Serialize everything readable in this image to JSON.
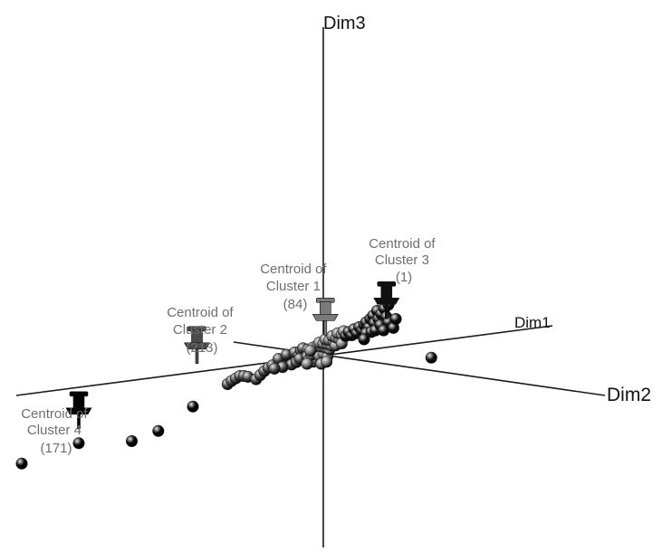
{
  "chart_data": {
    "type": "scatter",
    "projection": "3d",
    "title": "",
    "axes": [
      {
        "name": "Dim1",
        "label": "Dim1"
      },
      {
        "name": "Dim2",
        "label": "Dim2"
      },
      {
        "name": "Dim3",
        "label": "Dim3"
      }
    ],
    "clusters": [
      {
        "cluster": 1,
        "label_lines": [
          "Centroid of",
          "Cluster 1",
          "(84)"
        ],
        "size": 84,
        "color": "#7a7a7a"
      },
      {
        "cluster": 2,
        "label_lines": [
          "Centroid of",
          "Cluster 2",
          "(213)"
        ],
        "size": 213,
        "color": "#4a4a4a"
      },
      {
        "cluster": 3,
        "label_lines": [
          "Centroid of",
          "Cluster 3",
          "(1)"
        ],
        "size": 1,
        "color": "#111111"
      },
      {
        "cluster": 4,
        "label_lines": [
          "Centroid of",
          "Cluster 4",
          "(171)"
        ],
        "size": 171,
        "color": "#000000"
      }
    ],
    "points_note": "",
    "points": [
      {
        "cluster": 4,
        "u": -4.7,
        "v": -2.3
      },
      {
        "cluster": 4,
        "u": -4.05,
        "v": -2.05
      },
      {
        "cluster": 4,
        "u": -3.2,
        "v": -1.45
      },
      {
        "cluster": 2,
        "u": -2.35,
        "v": -0.9
      },
      {
        "cluster": 2,
        "u": -2.25,
        "v": -0.82
      },
      {
        "cluster": 2,
        "u": -2.15,
        "v": -0.76
      },
      {
        "cluster": 2,
        "u": -2.05,
        "v": -0.7
      },
      {
        "cluster": 2,
        "u": -1.95,
        "v": -0.7
      },
      {
        "cluster": 2,
        "u": -1.85,
        "v": -0.72
      },
      {
        "cluster": 2,
        "u": -1.65,
        "v": -0.78
      },
      {
        "cluster": 2,
        "u": -1.55,
        "v": -0.68
      },
      {
        "cluster": 2,
        "u": -1.45,
        "v": -0.58
      },
      {
        "cluster": 2,
        "u": -1.35,
        "v": -0.5
      },
      {
        "cluster": 2,
        "u": -1.25,
        "v": -0.44
      },
      {
        "cluster": 2,
        "u": -1.05,
        "v": -0.4
      },
      {
        "cluster": 2,
        "u": -0.95,
        "v": -0.35
      },
      {
        "cluster": 2,
        "u": -1.1,
        "v": -0.28
      },
      {
        "cluster": 2,
        "u": -0.85,
        "v": -0.24
      },
      {
        "cluster": 2,
        "u": -0.75,
        "v": -0.3
      },
      {
        "cluster": 2,
        "u": -0.9,
        "v": -0.18
      },
      {
        "cluster": 2,
        "u": -0.7,
        "v": -0.12
      },
      {
        "cluster": 2,
        "u": -0.6,
        "v": -0.2
      },
      {
        "cluster": 2,
        "u": -0.55,
        "v": -0.08
      },
      {
        "cluster": 2,
        "u": -0.45,
        "v": -0.14
      },
      {
        "cluster": 2,
        "u": -0.5,
        "v": -0.02
      },
      {
        "cluster": 2,
        "u": -0.38,
        "v": -0.05
      },
      {
        "cluster": 2,
        "u": -0.78,
        "v": -0.42
      },
      {
        "cluster": 2,
        "u": -0.66,
        "v": -0.36
      },
      {
        "cluster": 2,
        "u": -1.0,
        "v": -0.48
      },
      {
        "cluster": 2,
        "u": -1.2,
        "v": -0.52
      },
      {
        "cluster": 2,
        "u": -0.58,
        "v": -0.28
      },
      {
        "cluster": 2,
        "u": -0.4,
        "v": -0.22
      },
      {
        "cluster": 1,
        "u": -0.35,
        "v": -0.3
      },
      {
        "cluster": 1,
        "u": -0.25,
        "v": -0.35
      },
      {
        "cluster": 1,
        "u": -0.15,
        "v": -0.28
      },
      {
        "cluster": 1,
        "u": -0.05,
        "v": -0.32
      },
      {
        "cluster": 1,
        "u": -0.3,
        "v": -0.18
      },
      {
        "cluster": 1,
        "u": -0.2,
        "v": -0.1
      },
      {
        "cluster": 1,
        "u": -0.1,
        "v": -0.2
      },
      {
        "cluster": 1,
        "u": 0.0,
        "v": -0.15
      },
      {
        "cluster": 1,
        "u": 0.1,
        "v": -0.22
      },
      {
        "cluster": 1,
        "u": -0.25,
        "v": 0.0
      },
      {
        "cluster": 1,
        "u": -0.15,
        "v": 0.05
      },
      {
        "cluster": 1,
        "u": -0.05,
        "v": 0.02
      },
      {
        "cluster": 1,
        "u": 0.05,
        "v": 0.0
      },
      {
        "cluster": 1,
        "u": 0.15,
        "v": -0.05
      },
      {
        "cluster": 1,
        "u": -0.1,
        "v": 0.12
      },
      {
        "cluster": 1,
        "u": 0.0,
        "v": 0.1
      },
      {
        "cluster": 1,
        "u": 0.1,
        "v": 0.08
      },
      {
        "cluster": 1,
        "u": 0.2,
        "v": 0.05
      },
      {
        "cluster": 1,
        "u": 0.05,
        "v": 0.2
      },
      {
        "cluster": 1,
        "u": 0.15,
        "v": 0.18
      },
      {
        "cluster": 1,
        "u": 0.25,
        "v": 0.15
      },
      {
        "cluster": 1,
        "u": 0.3,
        "v": 0.05
      },
      {
        "cluster": 1,
        "u": 0.22,
        "v": 0.28
      },
      {
        "cluster": 1,
        "u": 0.32,
        "v": 0.24
      },
      {
        "cluster": 1,
        "u": 0.4,
        "v": 0.2
      },
      {
        "cluster": 1,
        "u": 0.35,
        "v": 0.35
      },
      {
        "cluster": 1,
        "u": 0.45,
        "v": 0.32
      },
      {
        "cluster": 1,
        "u": 0.5,
        "v": 0.4
      },
      {
        "cluster": 1,
        "u": -0.05,
        "v": -0.4
      },
      {
        "cluster": 1,
        "u": 0.08,
        "v": -0.35
      },
      {
        "cluster": 1,
        "u": -0.4,
        "v": -0.4
      },
      {
        "cluster": 1,
        "u": -0.32,
        "v": -0.08
      },
      {
        "cluster": 1,
        "u": 0.45,
        "v": 0.1
      },
      {
        "cluster": 3,
        "u": 0.55,
        "v": 0.28
      },
      {
        "cluster": 3,
        "u": 0.62,
        "v": 0.38
      },
      {
        "cluster": 3,
        "u": 0.7,
        "v": 0.3
      },
      {
        "cluster": 3,
        "u": 0.75,
        "v": 0.45
      },
      {
        "cluster": 3,
        "u": 0.82,
        "v": 0.35
      },
      {
        "cluster": 3,
        "u": 0.88,
        "v": 0.5
      },
      {
        "cluster": 3,
        "u": 0.95,
        "v": 0.42
      },
      {
        "cluster": 3,
        "u": 1.0,
        "v": 0.55
      },
      {
        "cluster": 3,
        "u": 1.05,
        "v": 0.62
      },
      {
        "cluster": 3,
        "u": 1.12,
        "v": 0.5
      },
      {
        "cluster": 3,
        "u": 1.15,
        "v": 0.7
      },
      {
        "cluster": 3,
        "u": 1.22,
        "v": 0.78
      },
      {
        "cluster": 3,
        "u": 1.25,
        "v": 0.6
      },
      {
        "cluster": 3,
        "u": 1.32,
        "v": 0.9
      },
      {
        "cluster": 3,
        "u": 1.35,
        "v": 0.7
      },
      {
        "cluster": 3,
        "u": 1.42,
        "v": 0.82
      },
      {
        "cluster": 3,
        "u": 1.5,
        "v": 0.95
      },
      {
        "cluster": 3,
        "u": 1.55,
        "v": 0.75
      },
      {
        "cluster": 3,
        "u": 1.6,
        "v": 1.05
      },
      {
        "cluster": 3,
        "u": 1.05,
        "v": 0.35
      },
      {
        "cluster": 3,
        "u": 1.18,
        "v": 0.38
      },
      {
        "cluster": 3,
        "u": 1.28,
        "v": 0.42
      },
      {
        "cluster": 3,
        "u": 1.4,
        "v": 0.55
      },
      {
        "cluster": 3,
        "u": 1.0,
        "v": 0.2
      },
      {
        "cluster": 3,
        "u": 1.6,
        "v": 0.62
      },
      {
        "cluster": 3,
        "u": 1.72,
        "v": 0.48
      },
      {
        "cluster": 3,
        "u": 1.78,
        "v": 0.7
      },
      {
        "cluster": 3,
        "u": 1.48,
        "v": 0.42
      },
      {
        "cluster": 3,
        "u": 2.65,
        "v": -0.25
      }
    ],
    "centroids": [
      {
        "cluster": 1,
        "u": 0.05,
        "v": 0.55
      },
      {
        "cluster": 2,
        "u": -3.1,
        "v": -0.15
      },
      {
        "cluster": 3,
        "u": 1.55,
        "v": 0.95
      },
      {
        "cluster": 4,
        "u": -6.0,
        "v": -1.75
      }
    ],
    "outliers": [
      {
        "cluster": 4,
        "u": -6.0,
        "v": -2.35
      },
      {
        "cluster": 4,
        "u": -7.4,
        "v": -2.85
      }
    ]
  }
}
